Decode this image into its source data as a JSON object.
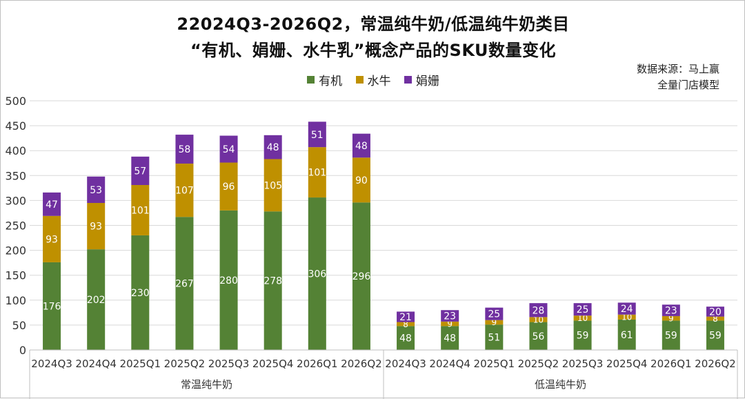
{
  "chart_data": {
    "type": "bar",
    "stacked": true,
    "title_line1": "22024Q3-2026Q2，常温纯牛奶/低温纯牛奶类目",
    "title_line2": "“有机、娟姗、水牛乳”概念产品的SKU数量变化",
    "source_line1": "数据来源：马上赢",
    "source_line2": "全量门店模型",
    "groups": [
      "常温纯牛奶",
      "低温纯牛奶"
    ],
    "categories": [
      "2024Q3",
      "2024Q4",
      "2025Q1",
      "2025Q2",
      "2025Q3",
      "2025Q4",
      "2026Q1",
      "2026Q2"
    ],
    "series": [
      {
        "name": "有机",
        "color": "#548235",
        "values": [
          [
            176,
            202,
            230,
            267,
            280,
            278,
            306,
            296
          ],
          [
            48,
            48,
            51,
            56,
            59,
            61,
            59,
            59
          ]
        ]
      },
      {
        "name": "水牛",
        "color": "#bf9000",
        "values": [
          [
            93,
            93,
            101,
            107,
            96,
            105,
            101,
            90
          ],
          [
            8,
            9,
            9,
            10,
            10,
            10,
            9,
            8
          ]
        ]
      },
      {
        "name": "娟姗",
        "color": "#7030a0",
        "values": [
          [
            47,
            53,
            57,
            58,
            54,
            48,
            51,
            48
          ],
          [
            21,
            23,
            25,
            28,
            25,
            24,
            23,
            20
          ]
        ]
      }
    ],
    "ylim": [
      0,
      500
    ],
    "yticks": [
      0,
      50,
      100,
      150,
      200,
      250,
      300,
      350,
      400,
      450,
      500
    ],
    "grid": true,
    "legend_position": "top"
  }
}
